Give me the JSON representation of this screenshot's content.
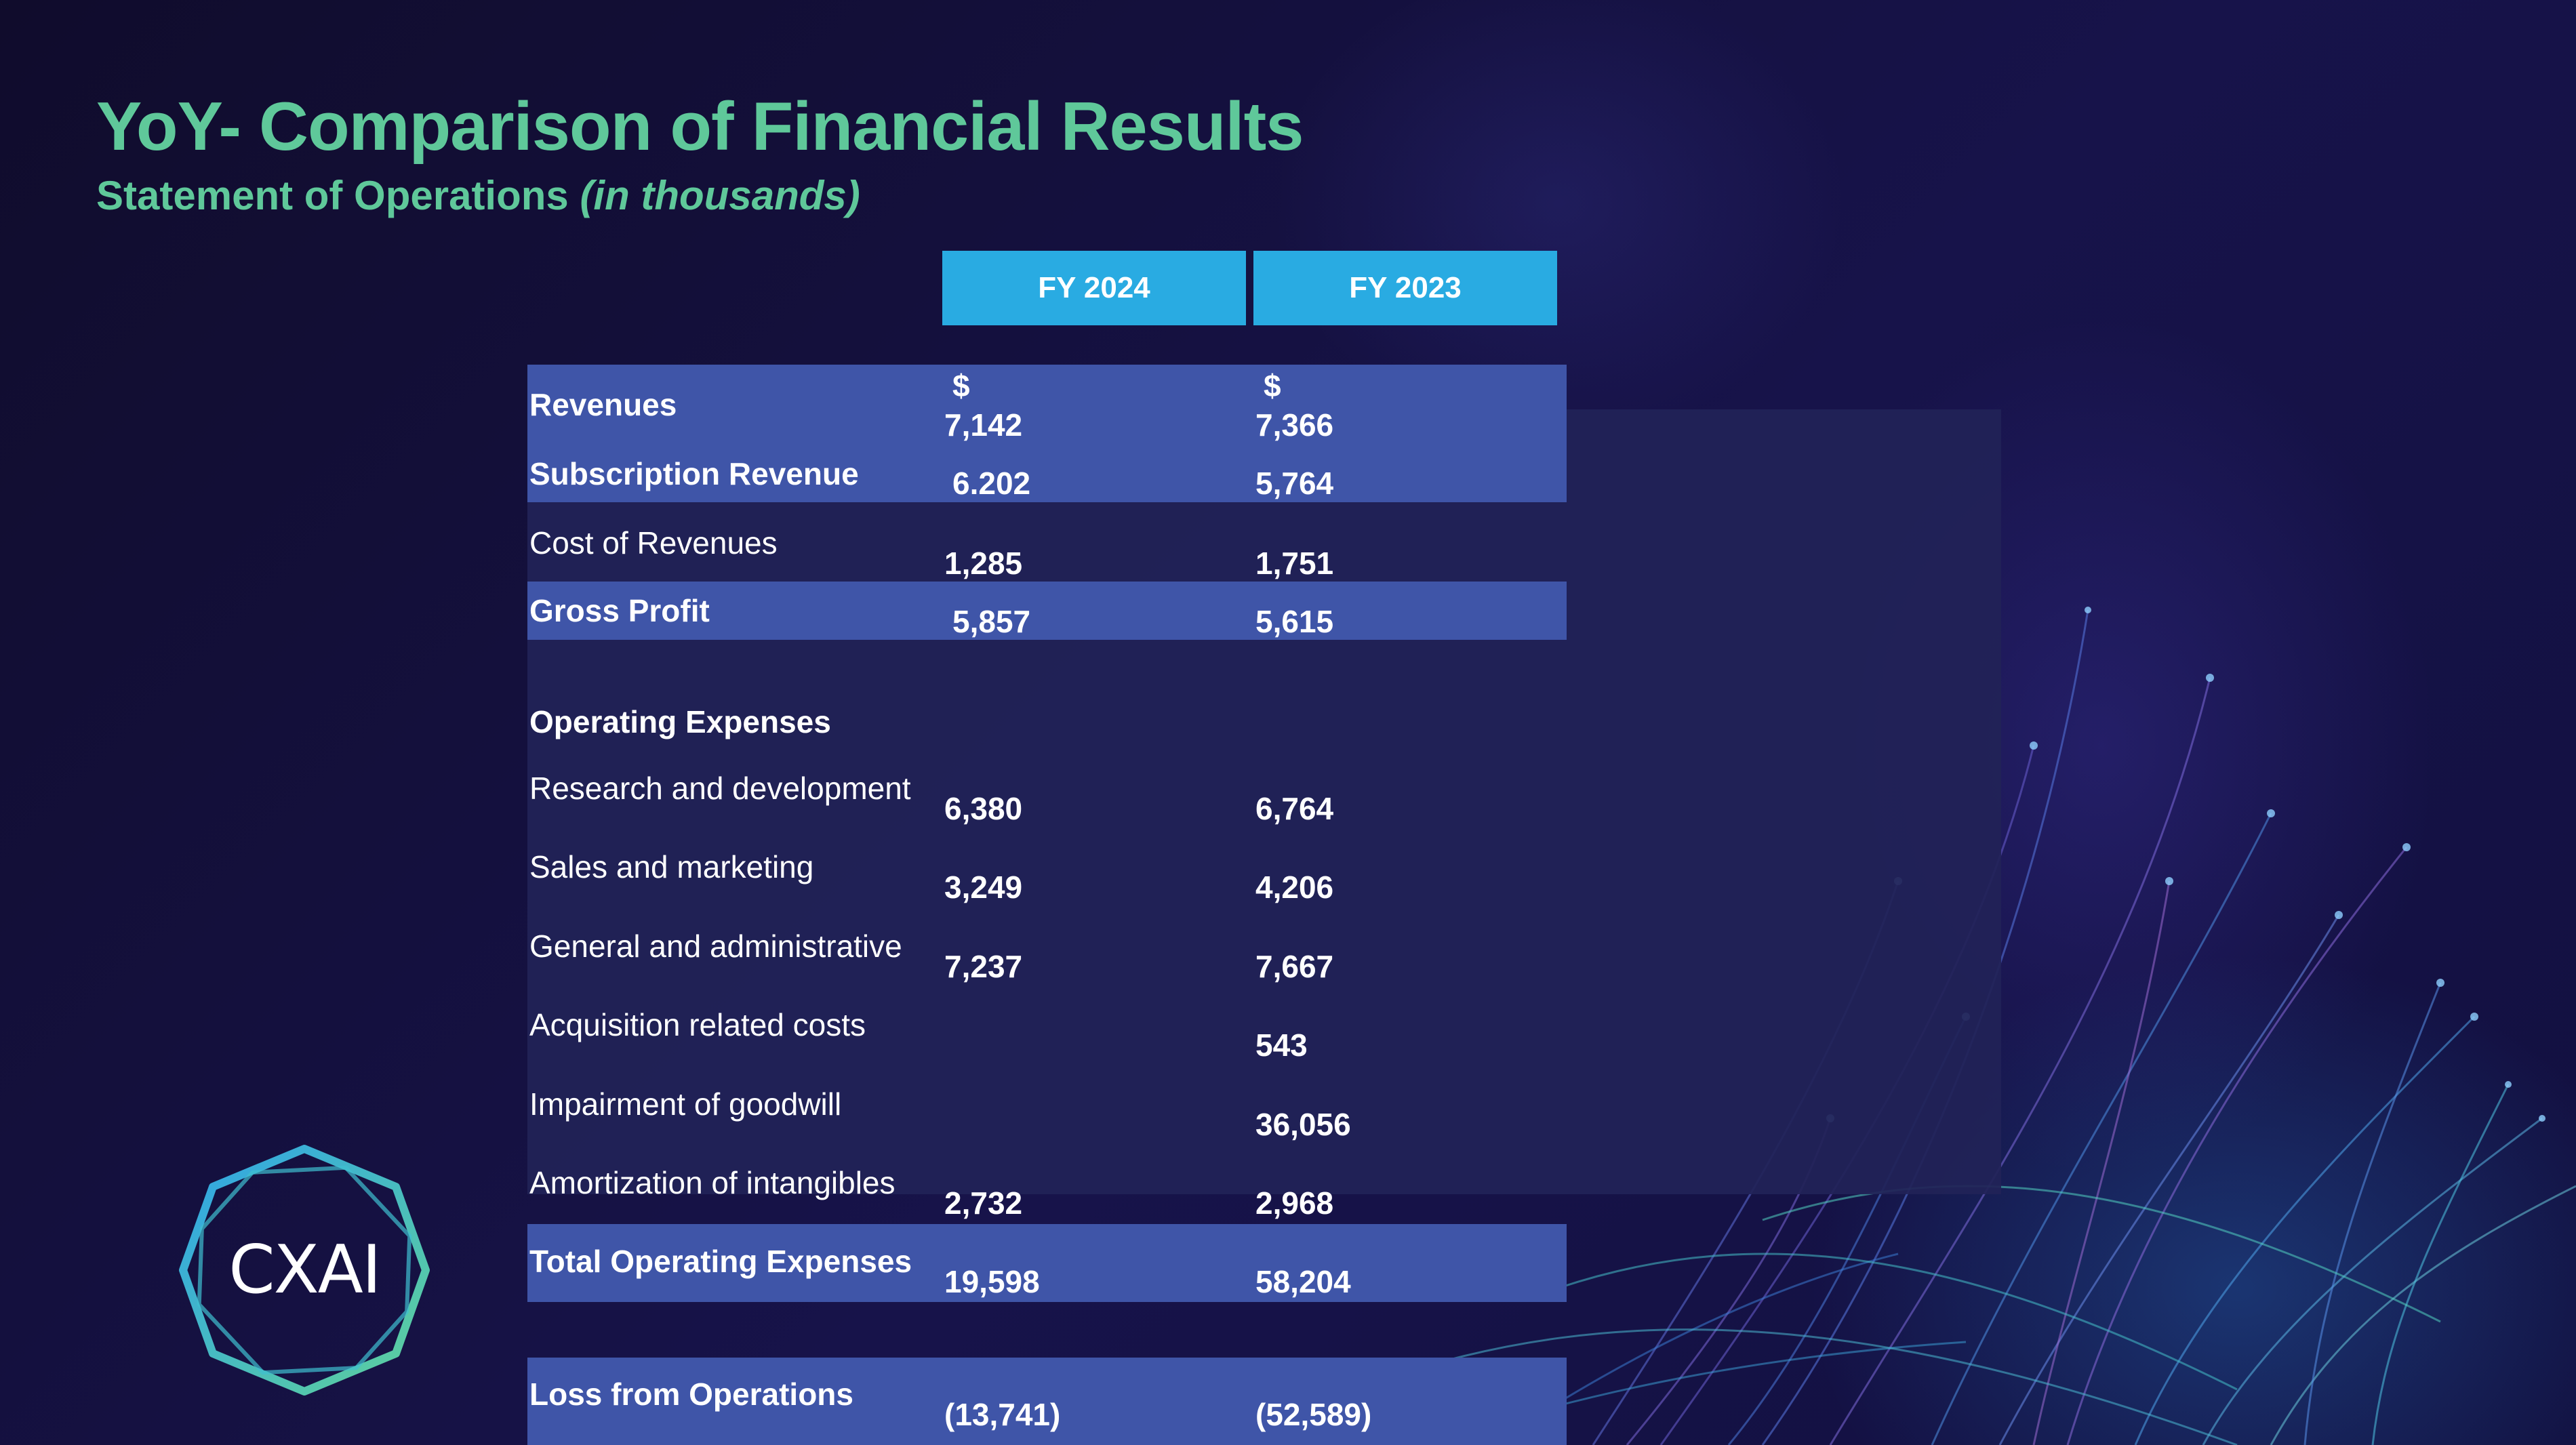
{
  "title": "YoY- Comparison of Financial Results",
  "subtitle": {
    "main": "Statement of Operations",
    "unit": "(in thousands)"
  },
  "columns": [
    "FY 2024",
    "FY 2023"
  ],
  "currency_symbol": "$",
  "rows": [
    {
      "label": "Revenues",
      "fy2024": "7,142",
      "fy2023": "7,366"
    },
    {
      "label": "Subscription Revenue",
      "fy2024": "6.202",
      "fy2023": "5,764"
    },
    {
      "label": "Cost of Revenues",
      "fy2024": "1,285",
      "fy2023": "1,751"
    },
    {
      "label": "Gross Profit",
      "fy2024": "5,857",
      "fy2023": "5,615"
    },
    {
      "label": "Operating Expenses",
      "fy2024": "",
      "fy2023": ""
    },
    {
      "label": "Research and development",
      "fy2024": "6,380",
      "fy2023": "6,764"
    },
    {
      "label": "Sales and marketing",
      "fy2024": "3,249",
      "fy2023": "4,206"
    },
    {
      "label": "General and administrative",
      "fy2024": "7,237",
      "fy2023": "7,667"
    },
    {
      "label": "Acquisition related costs",
      "fy2024": "",
      "fy2023": "543"
    },
    {
      "label": "Impairment of goodwill",
      "fy2024": "",
      "fy2023": "36,056"
    },
    {
      "label": "Amortization of intangibles",
      "fy2024": "2,732",
      "fy2023": "2,968"
    },
    {
      "label": "Total Operating Expenses",
      "fy2024": "19,598",
      "fy2023": "58,204"
    },
    {
      "label": "Loss from Operations",
      "fy2024": "(13,741)",
      "fy2023": "(52,589)"
    }
  ],
  "logo": {
    "text": "CXAI"
  },
  "colors": {
    "background": "#120f33",
    "accent_green": "#5fc89a",
    "header_blue": "#29abe2",
    "band_blue": "#3f55a8",
    "panel": "#212257"
  }
}
